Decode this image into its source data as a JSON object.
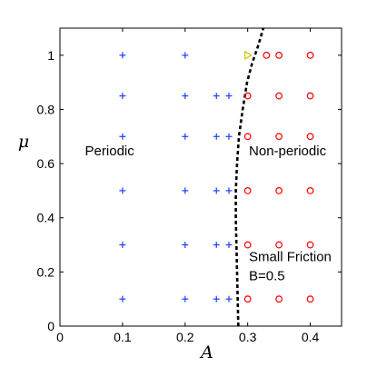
{
  "chart_data": {
    "type": "scatter",
    "xlabel": "A",
    "ylabel": "μ",
    "xlim": [
      0,
      0.45
    ],
    "ylim": [
      0,
      1.1
    ],
    "xticks": [
      "0",
      "0.1",
      "0.2",
      "0.3",
      "0.4"
    ],
    "xtick_values": [
      0,
      0.1,
      0.2,
      0.3,
      0.4
    ],
    "yticks": [
      "0",
      "0.2",
      "0.4",
      "0.6",
      "0.8",
      "1"
    ],
    "ytick_values": [
      0,
      0.2,
      0.4,
      0.6,
      0.8,
      1.0
    ],
    "grid": false,
    "series": [
      {
        "marker": "plus",
        "color": "#1f3fff",
        "points": [
          [
            0.1,
            0.1
          ],
          [
            0.2,
            0.1
          ],
          [
            0.25,
            0.1
          ],
          [
            0.27,
            0.1
          ],
          [
            0.1,
            0.3
          ],
          [
            0.2,
            0.3
          ],
          [
            0.25,
            0.3
          ],
          [
            0.27,
            0.3
          ],
          [
            0.1,
            0.5
          ],
          [
            0.2,
            0.5
          ],
          [
            0.25,
            0.5
          ],
          [
            0.27,
            0.5
          ],
          [
            0.1,
            0.7
          ],
          [
            0.2,
            0.7
          ],
          [
            0.25,
            0.7
          ],
          [
            0.27,
            0.7
          ],
          [
            0.1,
            0.85
          ],
          [
            0.2,
            0.85
          ],
          [
            0.25,
            0.85
          ],
          [
            0.27,
            0.85
          ],
          [
            0.1,
            1.0
          ],
          [
            0.2,
            1.0
          ]
        ]
      },
      {
        "marker": "circle",
        "color": "#ff0000",
        "points": [
          [
            0.3,
            0.1
          ],
          [
            0.35,
            0.1
          ],
          [
            0.4,
            0.1
          ],
          [
            0.3,
            0.3
          ],
          [
            0.35,
            0.3
          ],
          [
            0.4,
            0.3
          ],
          [
            0.3,
            0.5
          ],
          [
            0.35,
            0.5
          ],
          [
            0.4,
            0.5
          ],
          [
            0.3,
            0.7
          ],
          [
            0.35,
            0.7
          ],
          [
            0.4,
            0.7
          ],
          [
            0.3,
            0.85
          ],
          [
            0.35,
            0.85
          ],
          [
            0.4,
            0.85
          ],
          [
            0.33,
            1.0
          ],
          [
            0.35,
            1.0
          ],
          [
            0.4,
            1.0
          ]
        ]
      },
      {
        "marker": "triangle",
        "color": "#c8c800",
        "points": [
          [
            0.3,
            1.0
          ]
        ]
      }
    ],
    "boundary": {
      "style": "dashed",
      "color": "#000000",
      "points": [
        [
          0.285,
          0.0
        ],
        [
          0.284,
          0.1
        ],
        [
          0.283,
          0.2
        ],
        [
          0.282,
          0.3
        ],
        [
          0.281,
          0.4
        ],
        [
          0.281,
          0.5
        ],
        [
          0.283,
          0.6
        ],
        [
          0.286,
          0.7
        ],
        [
          0.292,
          0.8
        ],
        [
          0.299,
          0.9
        ],
        [
          0.307,
          0.97
        ],
        [
          0.316,
          1.03
        ],
        [
          0.325,
          1.1
        ]
      ]
    },
    "annotations": [
      {
        "text": "Periodic",
        "x": 0.04,
        "y": 0.63
      },
      {
        "text": "Non-periodic",
        "x": 0.302,
        "y": 0.63
      },
      {
        "text": "Small Friction",
        "x": 0.302,
        "y": 0.24
      },
      {
        "text": "B=0.5",
        "x": 0.302,
        "y": 0.17
      }
    ]
  }
}
